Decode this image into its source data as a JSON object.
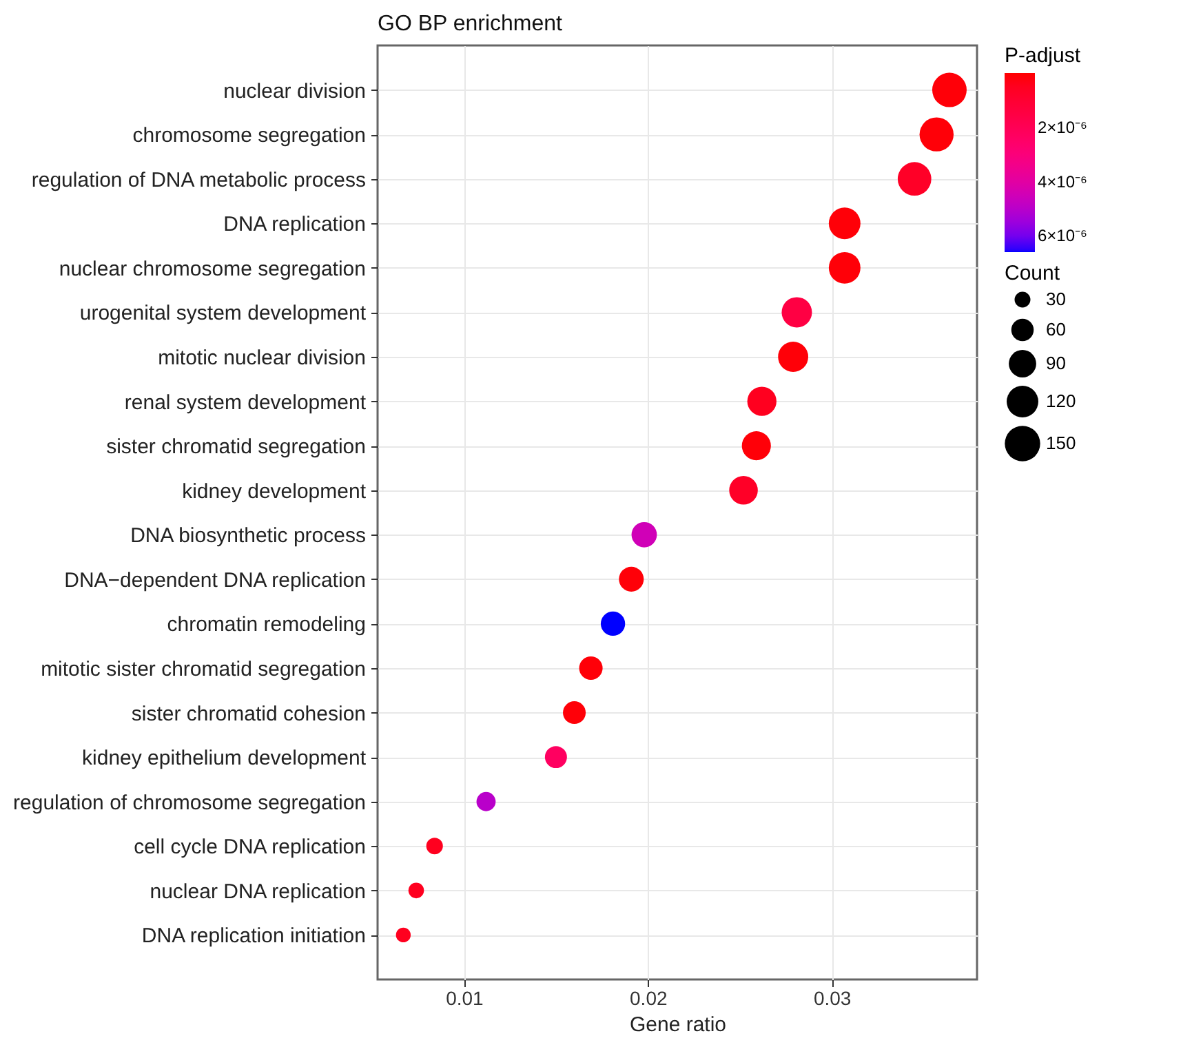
{
  "chart_data": {
    "type": "bubble",
    "title": "GO BP enrichment",
    "xlabel": "Gene ratio",
    "clabel": "P-adjust",
    "legend_title": "Count",
    "categories": [
      "nuclear division",
      "chromosome segregation",
      "regulation of DNA metabolic process",
      "DNA replication",
      "nuclear chromosome segregation",
      "urogenital system development",
      "mitotic nuclear division",
      "renal system development",
      "sister chromatid segregation",
      "kidney development",
      "DNA biosynthetic process",
      "DNA−dependent DNA replication",
      "chromatin remodeling",
      "mitotic sister chromatid segregation",
      "sister chromatid cohesion",
      "kidney epithelium development",
      "regulation of chromosome segregation",
      "cell cycle DNA replication",
      "nuclear DNA replication",
      "DNA replication initiation"
    ],
    "values": [
      0.0364,
      0.0357,
      0.0345,
      0.0307,
      0.0307,
      0.0281,
      0.0279,
      0.0262,
      0.0259,
      0.0252,
      0.0198,
      0.0191,
      0.0181,
      0.0169,
      0.016,
      0.015,
      0.0112,
      0.0084,
      0.0074,
      0.0067
    ],
    "sizes": [
      142,
      139,
      135,
      120,
      120,
      110,
      109,
      102,
      101,
      98,
      77,
      74,
      71,
      66,
      62,
      58,
      44,
      33,
      29,
      26
    ],
    "cvalues": [
      1e-07,
      1e-07,
      7e-07,
      1e-07,
      1e-07,
      1.5e-06,
      1e-07,
      5e-07,
      1e-07,
      7e-07,
      4.5e-06,
      1e-07,
      6.6e-06,
      1e-07,
      1e-07,
      2.3e-06,
      5e-06,
      5e-07,
      5e-07,
      5e-07
    ],
    "size_legend": [
      30,
      60,
      90,
      120,
      150
    ],
    "clim": [
      0,
      6.6e-06
    ],
    "cticks": [
      {
        "value": 2e-06,
        "label": "2×10⁻⁶"
      },
      {
        "value": 4e-06,
        "label": "4×10⁻⁶"
      },
      {
        "value": 6e-06,
        "label": "6×10⁻⁶"
      }
    ],
    "xlim": [
      0.0053,
      0.0379
    ],
    "xticks": [
      0.01,
      0.02,
      0.03
    ],
    "grid": true,
    "marker": "circle",
    "orientation": "horizontal"
  }
}
